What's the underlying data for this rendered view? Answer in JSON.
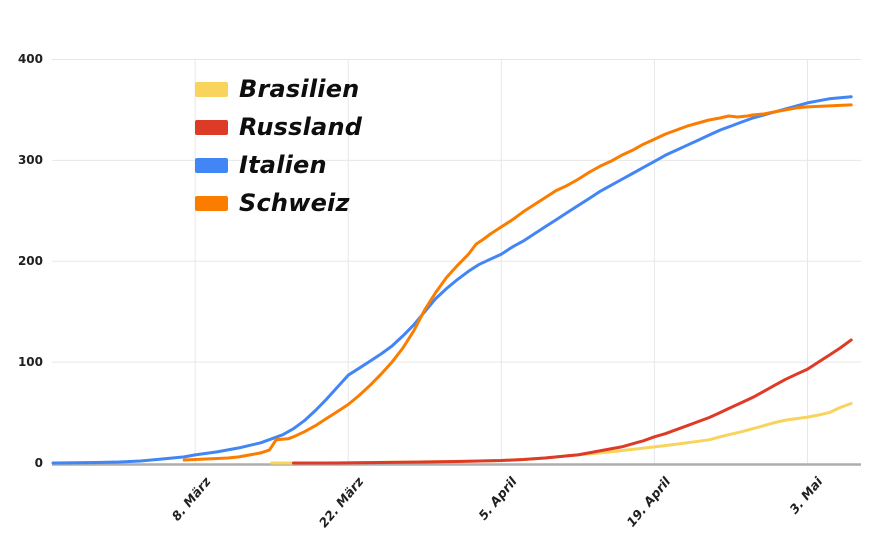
{
  "page": {
    "background": "#FFFFFF"
  },
  "chart_data": {
    "type": "line",
    "title": "",
    "xlabel": "",
    "ylabel": "",
    "grid": true,
    "legend_position": "top-left-inside",
    "y_axis": {
      "ticks": [
        0,
        100,
        200,
        300,
        400
      ],
      "range": [
        0,
        400
      ]
    },
    "x_axis": {
      "tick_labels": [
        "8. März",
        "22. März",
        "5. April",
        "19. April",
        "3. Mai"
      ],
      "tick_days": [
        13,
        27,
        41,
        55,
        69
      ],
      "range_days": [
        0,
        73
      ]
    },
    "colors": {
      "gridline": "#E7E7E7",
      "axis_line": "#ADADAD",
      "tick_label": "#202020",
      "legend_text": "#0E0E0E",
      "background": "#FFFFFF"
    },
    "series": [
      {
        "name": "Brasilien",
        "color": "#F8D45C",
        "points": [
          [
            20,
            0
          ],
          [
            25,
            0
          ],
          [
            29,
            0.5
          ],
          [
            33,
            1
          ],
          [
            36,
            1.5
          ],
          [
            39,
            2
          ],
          [
            41,
            2.5
          ],
          [
            43,
            3.5
          ],
          [
            45,
            5
          ],
          [
            47,
            7
          ],
          [
            49,
            9
          ],
          [
            51,
            11
          ],
          [
            53,
            13.5
          ],
          [
            55,
            16
          ],
          [
            57,
            18.5
          ],
          [
            59,
            21.5
          ],
          [
            60,
            23
          ],
          [
            61,
            26
          ],
          [
            62,
            28.5
          ],
          [
            63,
            31
          ],
          [
            64,
            34
          ],
          [
            65,
            37
          ],
          [
            66,
            40
          ],
          [
            67,
            42.5
          ],
          [
            68,
            44
          ],
          [
            69,
            45.5
          ],
          [
            70,
            47.5
          ],
          [
            71,
            50
          ],
          [
            72,
            55
          ],
          [
            73,
            59
          ]
        ]
      },
      {
        "name": "Russland",
        "color": "#DE3A28",
        "points": [
          [
            22,
            0
          ],
          [
            26,
            0
          ],
          [
            30,
            0.5
          ],
          [
            34,
            1
          ],
          [
            37,
            1.5
          ],
          [
            39,
            2
          ],
          [
            41,
            2.5
          ],
          [
            43,
            3.5
          ],
          [
            45,
            5
          ],
          [
            47,
            7
          ],
          [
            48,
            8
          ],
          [
            49,
            10
          ],
          [
            50,
            12
          ],
          [
            51,
            14
          ],
          [
            52,
            16
          ],
          [
            53,
            19
          ],
          [
            54,
            22
          ],
          [
            55,
            26
          ],
          [
            56,
            29
          ],
          [
            57,
            33
          ],
          [
            58,
            37
          ],
          [
            59,
            41
          ],
          [
            60,
            45
          ],
          [
            61,
            50
          ],
          [
            62,
            55
          ],
          [
            63,
            60
          ],
          [
            64,
            65
          ],
          [
            65,
            71
          ],
          [
            66,
            77
          ],
          [
            67,
            83
          ],
          [
            68,
            88
          ],
          [
            69,
            93
          ],
          [
            70,
            100
          ],
          [
            71,
            107
          ],
          [
            72,
            114
          ],
          [
            73,
            122
          ]
        ]
      },
      {
        "name": "Italien",
        "color": "#4285F4",
        "points": [
          [
            0,
            0
          ],
          [
            4,
            0.5
          ],
          [
            6,
            1
          ],
          [
            8,
            2
          ],
          [
            10,
            4
          ],
          [
            12,
            6
          ],
          [
            13,
            8
          ],
          [
            15,
            11
          ],
          [
            17,
            15
          ],
          [
            19,
            20
          ],
          [
            21,
            28
          ],
          [
            22,
            34
          ],
          [
            23,
            42
          ],
          [
            24,
            52
          ],
          [
            25,
            63
          ],
          [
            26,
            75
          ],
          [
            27,
            87
          ],
          [
            28,
            94
          ],
          [
            29,
            101
          ],
          [
            30,
            108
          ],
          [
            31,
            116
          ],
          [
            32,
            126
          ],
          [
            33,
            137
          ],
          [
            34,
            150
          ],
          [
            35,
            163
          ],
          [
            36,
            173
          ],
          [
            37,
            182
          ],
          [
            38,
            190
          ],
          [
            39,
            197
          ],
          [
            40,
            202
          ],
          [
            41,
            207
          ],
          [
            42,
            214
          ],
          [
            43,
            220
          ],
          [
            44,
            227
          ],
          [
            45,
            234
          ],
          [
            46,
            241
          ],
          [
            47,
            248
          ],
          [
            48,
            255
          ],
          [
            49,
            262
          ],
          [
            50,
            269
          ],
          [
            51,
            275
          ],
          [
            52,
            281
          ],
          [
            53,
            287
          ],
          [
            54,
            293
          ],
          [
            55,
            299
          ],
          [
            56,
            305
          ],
          [
            57,
            310
          ],
          [
            58,
            315
          ],
          [
            59,
            320
          ],
          [
            60,
            325
          ],
          [
            61,
            330
          ],
          [
            62,
            334
          ],
          [
            63,
            338
          ],
          [
            64,
            342
          ],
          [
            65,
            345
          ],
          [
            66,
            348
          ],
          [
            67,
            351
          ],
          [
            68,
            354
          ],
          [
            69,
            357
          ],
          [
            70,
            359
          ],
          [
            71,
            361
          ],
          [
            72,
            362
          ],
          [
            73,
            363
          ]
        ]
      },
      {
        "name": "Schweiz",
        "color": "#FA7D00",
        "points": [
          [
            12,
            3
          ],
          [
            14,
            4
          ],
          [
            16,
            5
          ],
          [
            17,
            6
          ],
          [
            18,
            8
          ],
          [
            19,
            10
          ],
          [
            19.8,
            13
          ],
          [
            20.4,
            23
          ],
          [
            21.5,
            24
          ],
          [
            22,
            26
          ],
          [
            23,
            31
          ],
          [
            24,
            37
          ],
          [
            25,
            44
          ],
          [
            26,
            51
          ],
          [
            27,
            58
          ],
          [
            28,
            67
          ],
          [
            29,
            77
          ],
          [
            30,
            88
          ],
          [
            31,
            100
          ],
          [
            32,
            114
          ],
          [
            33,
            131
          ],
          [
            34,
            152
          ],
          [
            35,
            169
          ],
          [
            36,
            184
          ],
          [
            37,
            196
          ],
          [
            38,
            207
          ],
          [
            38.7,
            217
          ],
          [
            39.4,
            222
          ],
          [
            40,
            227
          ],
          [
            41,
            234
          ],
          [
            42,
            241
          ],
          [
            43,
            249
          ],
          [
            44,
            256
          ],
          [
            45,
            263
          ],
          [
            46,
            270
          ],
          [
            47,
            275
          ],
          [
            48,
            281
          ],
          [
            49,
            288
          ],
          [
            50,
            294
          ],
          [
            51,
            299
          ],
          [
            52,
            305
          ],
          [
            53,
            310
          ],
          [
            54,
            316
          ],
          [
            55,
            321
          ],
          [
            56,
            326
          ],
          [
            57,
            330
          ],
          [
            58,
            334
          ],
          [
            59,
            337
          ],
          [
            60,
            340
          ],
          [
            61,
            342
          ],
          [
            61.8,
            344
          ],
          [
            62.6,
            343
          ],
          [
            63.5,
            344
          ],
          [
            64,
            345
          ],
          [
            65,
            346
          ],
          [
            66,
            348
          ],
          [
            67,
            350
          ],
          [
            68,
            352
          ],
          [
            69,
            353
          ],
          [
            70,
            353.5
          ],
          [
            71,
            354
          ],
          [
            72,
            354.5
          ],
          [
            73,
            355
          ]
        ]
      }
    ]
  }
}
